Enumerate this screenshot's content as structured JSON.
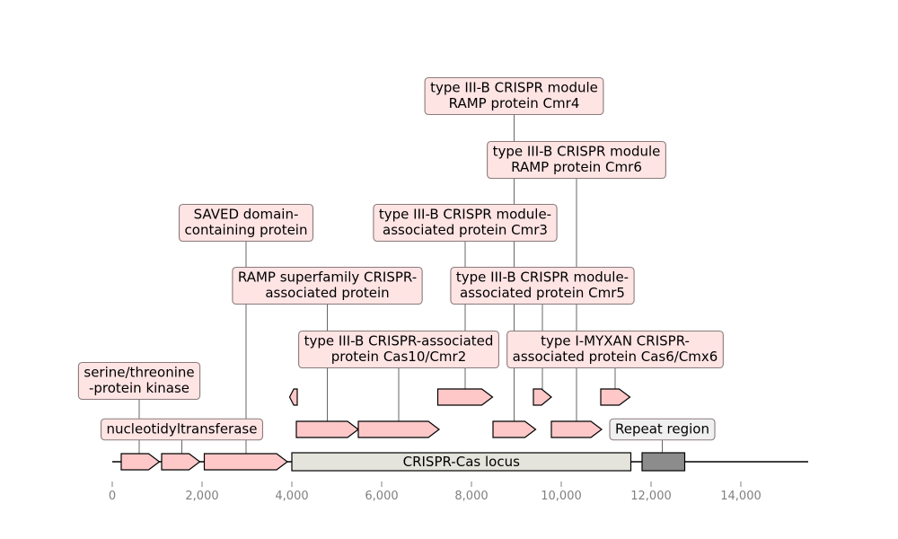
{
  "chart_data": {
    "type": "genome-map",
    "x_axis": {
      "range": [
        0,
        15500
      ],
      "ticks": [
        0,
        2000,
        4000,
        6000,
        8000,
        10000,
        12000,
        14000
      ],
      "tick_labels": [
        "0",
        "2,000",
        "4,000",
        "6,000",
        "8,000",
        "10,000",
        "12,000",
        "14,000"
      ]
    },
    "colors": {
      "gene_fill": "#ffc8c8",
      "locus_fill": "#e4e4dc",
      "repeat_fill": "#8c8c8c",
      "label_fill": "#ffe4e4",
      "label_border": "#8a7a7a",
      "repeat_label_fill": "#f0f0f0",
      "leader_line": "#404040"
    },
    "features": [
      {
        "id": "f1",
        "start": 200,
        "end": 1050,
        "strand": 1,
        "row": 0,
        "kind": "gene"
      },
      {
        "id": "f2",
        "start": 1100,
        "end": 1950,
        "strand": 1,
        "row": 0,
        "kind": "gene"
      },
      {
        "id": "f3",
        "start": 2050,
        "end": 3900,
        "strand": 1,
        "row": 0,
        "kind": "gene"
      },
      {
        "id": "locus",
        "start": 4000,
        "end": 11550,
        "strand": 0,
        "row": 0,
        "kind": "locus",
        "label": "CRISPR-Cas locus"
      },
      {
        "id": "repeat",
        "start": 11800,
        "end": 12750,
        "strand": 0,
        "row": 0,
        "kind": "repeat"
      },
      {
        "id": "f4",
        "start": 4100,
        "end": 5480,
        "strand": 1,
        "row": 1,
        "kind": "gene"
      },
      {
        "id": "f5",
        "start": 5480,
        "end": 7280,
        "strand": 1,
        "row": 1,
        "kind": "gene"
      },
      {
        "id": "f6",
        "start": 8480,
        "end": 9430,
        "strand": 1,
        "row": 1,
        "kind": "gene"
      },
      {
        "id": "f7",
        "start": 9780,
        "end": 10900,
        "strand": 1,
        "row": 1,
        "kind": "gene"
      },
      {
        "id": "f8",
        "start": 3950,
        "end": 4120,
        "strand": -1,
        "row": 2,
        "kind": "gene"
      },
      {
        "id": "f9",
        "start": 7250,
        "end": 8470,
        "strand": 1,
        "row": 2,
        "kind": "gene"
      },
      {
        "id": "f10",
        "start": 9380,
        "end": 9780,
        "strand": 1,
        "row": 2,
        "kind": "gene"
      },
      {
        "id": "f11",
        "start": 10880,
        "end": 11530,
        "strand": 1,
        "row": 2,
        "kind": "gene"
      }
    ],
    "annotations": [
      {
        "lines": [
          "nucleotidyltransferase"
        ],
        "x": 1550,
        "level": 1,
        "anchor_row": 0,
        "center": 1550
      },
      {
        "lines": [
          "serine/threonine",
          "-protein kinase"
        ],
        "x": 600,
        "level": 2,
        "anchor_row": 0,
        "center": 600
      },
      {
        "lines": [
          "Repeat region"
        ],
        "x": 12250,
        "level": 1,
        "anchor_row": 0,
        "center": 12250,
        "style": "repeat"
      },
      {
        "lines": [
          "type III-B CRISPR-associated",
          "protein Cas10/Cmr2"
        ],
        "x": 6380,
        "level": 3,
        "anchor_row": 1,
        "center": 6380
      },
      {
        "lines": [
          "type I-MYXAN CRISPR-",
          "associated protein Cas6/Cmx6"
        ],
        "x": 11200,
        "level": 3,
        "anchor_row": 2,
        "center": 11200
      },
      {
        "lines": [
          "RAMP superfamily CRISPR-",
          "associated protein"
        ],
        "x": 4790,
        "level": 4,
        "anchor_row": 1,
        "center": 4790
      },
      {
        "lines": [
          "type III-B CRISPR module-",
          "associated protein Cmr5"
        ],
        "x": 9580,
        "level": 4,
        "anchor_row": 2,
        "center": 9580
      },
      {
        "lines": [
          "SAVED domain-",
          "containing protein"
        ],
        "x": 2980,
        "level": 5,
        "anchor_row": 0,
        "center": 2980
      },
      {
        "lines": [
          "type III-B CRISPR module-",
          "associated protein Cmr3"
        ],
        "x": 7860,
        "level": 5,
        "anchor_row": 2,
        "center": 7860
      },
      {
        "lines": [
          "type III-B CRISPR module",
          "RAMP protein Cmr6"
        ],
        "x": 10340,
        "level": 6,
        "anchor_row": 1,
        "center": 10340
      },
      {
        "lines": [
          "type III-B CRISPR module",
          "RAMP protein Cmr4"
        ],
        "x": 8950,
        "level": 7,
        "anchor_row": 1,
        "center": 8950
      }
    ]
  }
}
